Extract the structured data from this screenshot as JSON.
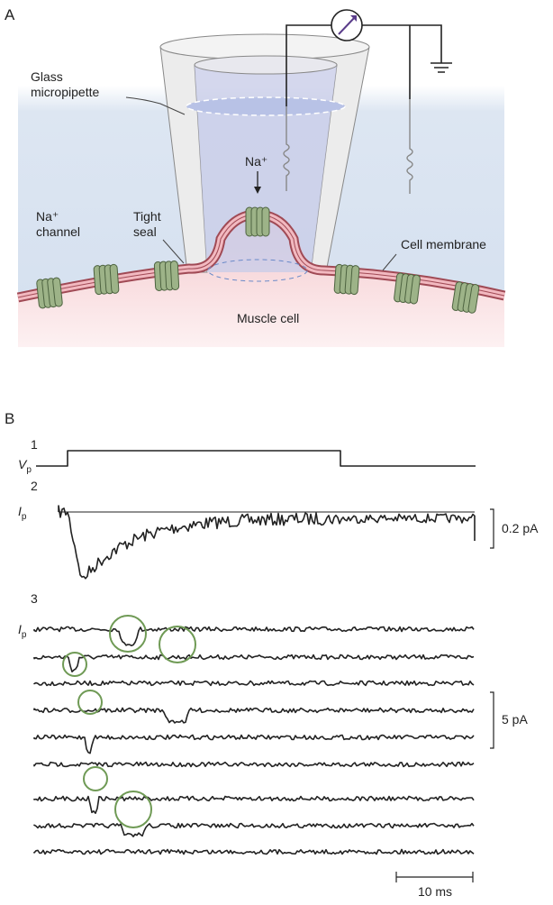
{
  "panel_a": {
    "label": "A",
    "pipette_label": "Glass micropipette",
    "channel_label": "Na⁺ channel",
    "seal_label": "Tight seal",
    "ion_label": "Na⁺",
    "membrane_label": "Cell membrane",
    "cell_label": "Muscle cell"
  },
  "panel_b": {
    "label": "B",
    "trace_1": {
      "number": "1",
      "symbol": "V",
      "subscript": "p"
    },
    "trace_2": {
      "number": "2",
      "symbol": "I",
      "subscript": "p",
      "scale": "0.2 pA"
    },
    "trace_3": {
      "number": "3",
      "symbol": "I",
      "subscript": "p",
      "scale": "5 pA"
    },
    "time_scale": "10 ms"
  }
}
